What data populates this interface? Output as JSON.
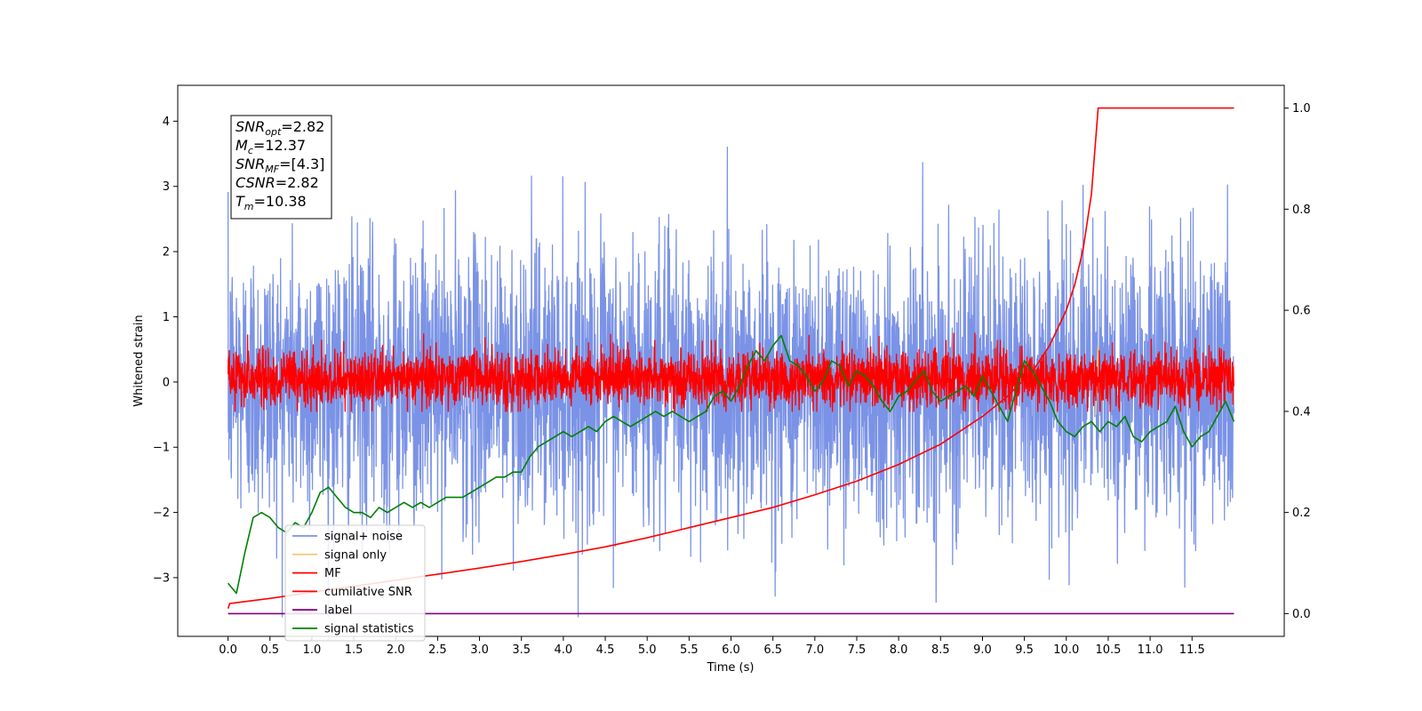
{
  "chart_data": {
    "type": "line",
    "xlabel": "Time (s)",
    "ylabel": "Whitened strain",
    "xlim": [
      -0.6,
      12.6
    ],
    "ylim": [
      -3.9,
      4.55
    ],
    "y2lim": [
      -0.045,
      1.045
    ],
    "x_ticks": [
      "0.0",
      "0.5",
      "1.0",
      "1.5",
      "2.0",
      "2.5",
      "3.0",
      "3.5",
      "4.0",
      "4.5",
      "5.0",
      "5.5",
      "6.0",
      "6.5",
      "7.0",
      "7.5",
      "8.0",
      "8.5",
      "9.0",
      "9.5",
      "10.0",
      "10.5",
      "11.0",
      "11.5"
    ],
    "y_ticks": [
      "−3",
      "−2",
      "−1",
      "0",
      "1",
      "2",
      "3",
      "4"
    ],
    "y2_ticks": [
      "0.0",
      "0.2",
      "0.4",
      "0.6",
      "0.8",
      "1.0"
    ],
    "annotation": {
      "lines": [
        {
          "base": "SNR",
          "sub": "opt",
          "value": "=2.82"
        },
        {
          "base": "M",
          "sub": "c",
          "value": "=12.37"
        },
        {
          "base": "SNR",
          "sub": "MF",
          "value": "=[4.3]"
        },
        {
          "base": "CSNR",
          "sub": "",
          "value": "=2.82"
        },
        {
          "base": "T",
          "sub": "m",
          "value": "=10.38"
        }
      ]
    },
    "legend": {
      "location": "lower-left",
      "entries": [
        {
          "label": "signal+ noise",
          "color": "#7b93e6"
        },
        {
          "label": "signal only",
          "color": "#f5c97a"
        },
        {
          "label": "MF",
          "color": "#ff0000"
        },
        {
          "label": "cumilative SNR",
          "color": "#ff0000"
        },
        {
          "label": "label",
          "color": "#800080"
        },
        {
          "label": "signal statistics",
          "color": "#008000"
        }
      ]
    },
    "series": [
      {
        "name": "signal+ noise",
        "axis": "left",
        "color": "#7b93e6",
        "x_range": [
          0,
          12
        ],
        "mean": 0,
        "spread": 1.05
      },
      {
        "name": "signal only",
        "axis": "left",
        "color": "#f5c97a",
        "x": [
          10.35,
          10.38,
          10.41
        ],
        "y": [
          -0.5,
          0.55,
          -0.3
        ]
      },
      {
        "name": "MF",
        "axis": "left",
        "color": "#ff0000",
        "x_range": [
          0,
          12
        ],
        "mean": 0.05,
        "spread": 0.22
      },
      {
        "name": "cumilative SNR",
        "axis": "right",
        "color": "#ff0000",
        "x": [
          0.0,
          0.02,
          0.5,
          1.0,
          1.5,
          2.0,
          2.5,
          3.0,
          3.5,
          4.0,
          4.5,
          5.0,
          5.5,
          6.0,
          6.5,
          7.0,
          7.5,
          8.0,
          8.5,
          9.0,
          9.3,
          9.6,
          9.8,
          10.0,
          10.1,
          10.2,
          10.3,
          10.38,
          12.0
        ],
        "y": [
          0.01,
          0.02,
          0.03,
          0.042,
          0.054,
          0.066,
          0.078,
          0.09,
          0.103,
          0.117,
          0.132,
          0.15,
          0.17,
          0.19,
          0.21,
          0.235,
          0.262,
          0.295,
          0.335,
          0.39,
          0.43,
          0.48,
          0.53,
          0.6,
          0.65,
          0.72,
          0.83,
          1.0,
          1.0
        ]
      },
      {
        "name": "label",
        "axis": "right",
        "color": "#800080",
        "x": [
          0,
          12
        ],
        "y": [
          0,
          0
        ]
      },
      {
        "name": "signal statistics",
        "axis": "right",
        "color": "#008000",
        "x": [
          0.0,
          0.1,
          0.2,
          0.3,
          0.4,
          0.5,
          0.6,
          0.7,
          0.8,
          0.9,
          1.0,
          1.1,
          1.2,
          1.3,
          1.4,
          1.5,
          1.6,
          1.7,
          1.8,
          1.9,
          2.0,
          2.1,
          2.2,
          2.3,
          2.4,
          2.5,
          2.6,
          2.7,
          2.8,
          2.9,
          3.0,
          3.1,
          3.2,
          3.3,
          3.4,
          3.5,
          3.6,
          3.7,
          3.8,
          3.9,
          4.0,
          4.1,
          4.2,
          4.3,
          4.4,
          4.5,
          4.6,
          4.7,
          4.8,
          4.9,
          5.0,
          5.1,
          5.2,
          5.3,
          5.4,
          5.5,
          5.6,
          5.7,
          5.8,
          5.9,
          6.0,
          6.1,
          6.2,
          6.3,
          6.4,
          6.5,
          6.6,
          6.7,
          6.8,
          6.9,
          7.0,
          7.1,
          7.2,
          7.3,
          7.4,
          7.5,
          7.6,
          7.7,
          7.8,
          7.9,
          8.0,
          8.1,
          8.2,
          8.3,
          8.4,
          8.5,
          8.6,
          8.7,
          8.8,
          8.9,
          9.0,
          9.1,
          9.2,
          9.3,
          9.4,
          9.5,
          9.6,
          9.7,
          9.8,
          9.9,
          10.0,
          10.1,
          10.2,
          10.3,
          10.4,
          10.5,
          10.6,
          10.7,
          10.8,
          10.9,
          11.0,
          11.1,
          11.2,
          11.3,
          11.4,
          11.5,
          11.6,
          11.7,
          11.8,
          11.9,
          12.0
        ],
        "y": [
          0.06,
          0.04,
          0.12,
          0.19,
          0.2,
          0.19,
          0.17,
          0.16,
          0.18,
          0.17,
          0.2,
          0.24,
          0.25,
          0.23,
          0.21,
          0.2,
          0.2,
          0.19,
          0.21,
          0.2,
          0.21,
          0.22,
          0.21,
          0.22,
          0.21,
          0.22,
          0.23,
          0.23,
          0.23,
          0.24,
          0.25,
          0.26,
          0.27,
          0.27,
          0.28,
          0.28,
          0.31,
          0.33,
          0.34,
          0.35,
          0.36,
          0.35,
          0.36,
          0.37,
          0.36,
          0.38,
          0.39,
          0.38,
          0.37,
          0.38,
          0.39,
          0.4,
          0.39,
          0.4,
          0.39,
          0.38,
          0.39,
          0.4,
          0.43,
          0.44,
          0.42,
          0.45,
          0.49,
          0.52,
          0.5,
          0.53,
          0.55,
          0.5,
          0.49,
          0.47,
          0.44,
          0.46,
          0.5,
          0.49,
          0.45,
          0.48,
          0.47,
          0.45,
          0.42,
          0.4,
          0.43,
          0.44,
          0.46,
          0.48,
          0.44,
          0.42,
          0.43,
          0.44,
          0.45,
          0.43,
          0.47,
          0.44,
          0.41,
          0.38,
          0.44,
          0.5,
          0.48,
          0.45,
          0.42,
          0.38,
          0.36,
          0.35,
          0.37,
          0.38,
          0.36,
          0.38,
          0.37,
          0.39,
          0.35,
          0.34,
          0.36,
          0.37,
          0.38,
          0.41,
          0.36,
          0.33,
          0.35,
          0.36,
          0.39,
          0.42,
          0.38
        ]
      }
    ]
  }
}
